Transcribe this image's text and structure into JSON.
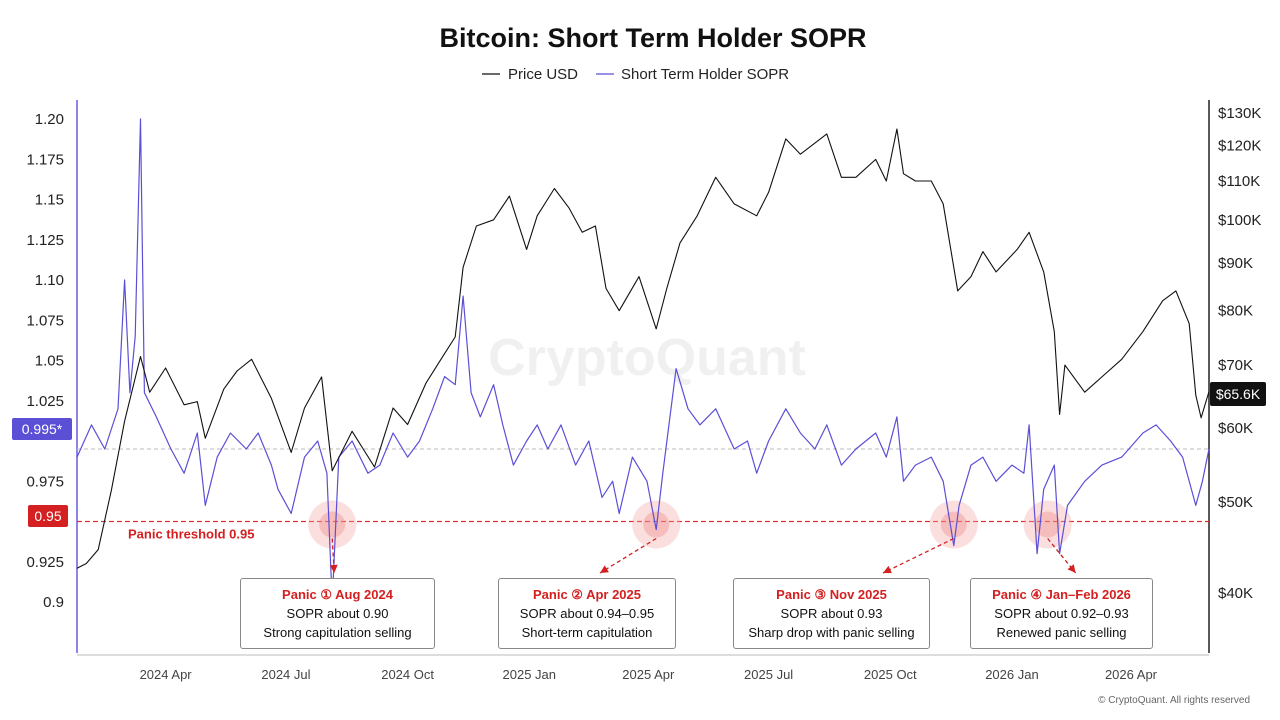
{
  "chart_data": {
    "type": "line",
    "title": "Bitcoin: Short Term Holder SOPR",
    "legend": [
      {
        "name": "Price USD",
        "color": "#111111"
      },
      {
        "name": "Short Term Holder SOPR",
        "color": "#5b4fd6"
      }
    ],
    "legend_position": "top-center",
    "watermark": "CryptoQuant",
    "copyright": "© CryptoQuant. All rights reserved",
    "x_ticks": [
      "2024 Apr",
      "2024 Jul",
      "2024 Oct",
      "2025 Jan",
      "2025 Apr",
      "2025 Jul",
      "2025 Oct",
      "2026 Jan",
      "2026 Apr"
    ],
    "x_range": [
      "2024-01-25",
      "2026-05-30"
    ],
    "y_left": {
      "ticks": [
        "1.20",
        "1.175",
        "1.15",
        "1.125",
        "1.10",
        "1.075",
        "1.05",
        "1.025",
        "0.975",
        "0.95",
        "0.925",
        "0.9"
      ],
      "range": [
        0.895,
        1.2
      ],
      "current_label": "0.995*",
      "current_value": 0.995,
      "threshold_label": "0.95",
      "threshold_value": 0.95
    },
    "y_right": {
      "ticks": [
        "$130K",
        "$120K",
        "$110K",
        "$100K",
        "$90K",
        "$80K",
        "$70K",
        "$60K",
        "$50K",
        "$40K"
      ],
      "scale": "log",
      "current_label": "$65.6K",
      "current_value": 65600
    },
    "threshold": {
      "label": "Panic threshold 0.95",
      "value": 0.95,
      "color": "#e03030"
    },
    "series": [
      {
        "name": "Price USD",
        "axis": "right",
        "color": "#111111",
        "points": [
          [
            "2024-01-25",
            42500
          ],
          [
            "2024-02-01",
            43000
          ],
          [
            "2024-02-10",
            44500
          ],
          [
            "2024-02-20",
            51500
          ],
          [
            "2024-03-01",
            61000
          ],
          [
            "2024-03-13",
            71500
          ],
          [
            "2024-03-20",
            65500
          ],
          [
            "2024-04-01",
            69500
          ],
          [
            "2024-04-15",
            63500
          ],
          [
            "2024-04-25",
            64000
          ],
          [
            "2024-05-01",
            58500
          ],
          [
            "2024-05-15",
            66000
          ],
          [
            "2024-05-25",
            69000
          ],
          [
            "2024-06-05",
            71000
          ],
          [
            "2024-06-20",
            64500
          ],
          [
            "2024-07-05",
            56500
          ],
          [
            "2024-07-15",
            63000
          ],
          [
            "2024-07-28",
            68000
          ],
          [
            "2024-08-05",
            54000
          ],
          [
            "2024-08-20",
            59500
          ],
          [
            "2024-09-06",
            54500
          ],
          [
            "2024-09-20",
            63000
          ],
          [
            "2024-10-01",
            60500
          ],
          [
            "2024-10-15",
            67000
          ],
          [
            "2024-10-29",
            72000
          ],
          [
            "2024-11-06",
            75000
          ],
          [
            "2024-11-12",
            89000
          ],
          [
            "2024-11-22",
            98500
          ],
          [
            "2024-12-05",
            100000
          ],
          [
            "2024-12-17",
            106000
          ],
          [
            "2024-12-30",
            93000
          ],
          [
            "2025-01-07",
            101000
          ],
          [
            "2025-01-20",
            108000
          ],
          [
            "2025-01-31",
            103000
          ],
          [
            "2025-02-10",
            97000
          ],
          [
            "2025-02-20",
            98500
          ],
          [
            "2025-02-28",
            84500
          ],
          [
            "2025-03-10",
            80000
          ],
          [
            "2025-03-25",
            87000
          ],
          [
            "2025-04-07",
            76500
          ],
          [
            "2025-04-15",
            84500
          ],
          [
            "2025-04-25",
            94500
          ],
          [
            "2025-05-08",
            101000
          ],
          [
            "2025-05-22",
            111000
          ],
          [
            "2025-06-05",
            104000
          ],
          [
            "2025-06-22",
            101000
          ],
          [
            "2025-07-01",
            107000
          ],
          [
            "2025-07-14",
            122000
          ],
          [
            "2025-07-25",
            117500
          ],
          [
            "2025-08-14",
            123500
          ],
          [
            "2025-08-25",
            111000
          ],
          [
            "2025-09-05",
            111000
          ],
          [
            "2025-09-20",
            116000
          ],
          [
            "2025-09-28",
            110000
          ],
          [
            "2025-10-06",
            125000
          ],
          [
            "2025-10-11",
            112000
          ],
          [
            "2025-10-20",
            110000
          ],
          [
            "2025-11-01",
            110000
          ],
          [
            "2025-11-10",
            104000
          ],
          [
            "2025-11-21",
            84000
          ],
          [
            "2025-12-01",
            87000
          ],
          [
            "2025-12-10",
            92500
          ],
          [
            "2025-12-20",
            88000
          ],
          [
            "2026-01-05",
            93000
          ],
          [
            "2026-01-14",
            97000
          ],
          [
            "2026-01-25",
            88000
          ],
          [
            "2026-02-02",
            76000
          ],
          [
            "2026-02-06",
            62000
          ],
          [
            "2026-02-10",
            70000
          ],
          [
            "2026-02-25",
            65500
          ],
          [
            "2026-03-10",
            68000
          ],
          [
            "2026-03-25",
            71000
          ],
          [
            "2026-04-10",
            76000
          ],
          [
            "2026-04-25",
            82000
          ],
          [
            "2026-05-05",
            84000
          ],
          [
            "2026-05-15",
            77500
          ],
          [
            "2026-05-20",
            65000
          ],
          [
            "2026-05-24",
            61500
          ],
          [
            "2026-05-30",
            65600
          ]
        ]
      },
      {
        "name": "Short Term Holder SOPR",
        "axis": "left",
        "color": "#5b4fd6",
        "points": [
          [
            "2024-01-25",
            0.99
          ],
          [
            "2024-02-05",
            1.01
          ],
          [
            "2024-02-15",
            0.995
          ],
          [
            "2024-02-25",
            1.02
          ],
          [
            "2024-03-01",
            1.1
          ],
          [
            "2024-03-05",
            1.03
          ],
          [
            "2024-03-09",
            1.065
          ],
          [
            "2024-03-13",
            1.2
          ],
          [
            "2024-03-16",
            1.03
          ],
          [
            "2024-03-25",
            1.015
          ],
          [
            "2024-04-05",
            0.995
          ],
          [
            "2024-04-15",
            0.98
          ],
          [
            "2024-04-25",
            1.005
          ],
          [
            "2024-05-01",
            0.96
          ],
          [
            "2024-05-10",
            0.99
          ],
          [
            "2024-05-20",
            1.005
          ],
          [
            "2024-06-01",
            0.995
          ],
          [
            "2024-06-10",
            1.005
          ],
          [
            "2024-06-20",
            0.985
          ],
          [
            "2024-06-25",
            0.97
          ],
          [
            "2024-07-05",
            0.955
          ],
          [
            "2024-07-15",
            0.99
          ],
          [
            "2024-07-25",
            1.0
          ],
          [
            "2024-08-01",
            0.98
          ],
          [
            "2024-08-05",
            0.9
          ],
          [
            "2024-08-10",
            0.99
          ],
          [
            "2024-08-20",
            1.0
          ],
          [
            "2024-09-01",
            0.98
          ],
          [
            "2024-09-10",
            0.985
          ],
          [
            "2024-09-20",
            1.005
          ],
          [
            "2024-10-01",
            0.99
          ],
          [
            "2024-10-10",
            1.0
          ],
          [
            "2024-10-20",
            1.02
          ],
          [
            "2024-10-29",
            1.04
          ],
          [
            "2024-11-06",
            1.035
          ],
          [
            "2024-11-12",
            1.09
          ],
          [
            "2024-11-18",
            1.03
          ],
          [
            "2024-11-25",
            1.015
          ],
          [
            "2024-12-05",
            1.035
          ],
          [
            "2024-12-12",
            1.01
          ],
          [
            "2024-12-20",
            0.985
          ],
          [
            "2024-12-30",
            1.0
          ],
          [
            "2025-01-07",
            1.01
          ],
          [
            "2025-01-15",
            0.995
          ],
          [
            "2025-01-25",
            1.01
          ],
          [
            "2025-02-05",
            0.985
          ],
          [
            "2025-02-15",
            1.0
          ],
          [
            "2025-02-25",
            0.965
          ],
          [
            "2025-03-05",
            0.975
          ],
          [
            "2025-03-10",
            0.955
          ],
          [
            "2025-03-20",
            0.99
          ],
          [
            "2025-03-31",
            0.975
          ],
          [
            "2025-04-07",
            0.945
          ],
          [
            "2025-04-12",
            0.98
          ],
          [
            "2025-04-22",
            1.045
          ],
          [
            "2025-05-01",
            1.02
          ],
          [
            "2025-05-10",
            1.01
          ],
          [
            "2025-05-22",
            1.02
          ],
          [
            "2025-06-05",
            0.995
          ],
          [
            "2025-06-15",
            1.0
          ],
          [
            "2025-06-22",
            0.98
          ],
          [
            "2025-07-01",
            1.0
          ],
          [
            "2025-07-14",
            1.02
          ],
          [
            "2025-07-25",
            1.005
          ],
          [
            "2025-08-05",
            0.995
          ],
          [
            "2025-08-14",
            1.01
          ],
          [
            "2025-08-25",
            0.985
          ],
          [
            "2025-09-05",
            0.995
          ],
          [
            "2025-09-20",
            1.005
          ],
          [
            "2025-09-28",
            0.99
          ],
          [
            "2025-10-06",
            1.015
          ],
          [
            "2025-10-11",
            0.975
          ],
          [
            "2025-10-20",
            0.985
          ],
          [
            "2025-11-01",
            0.99
          ],
          [
            "2025-11-10",
            0.975
          ],
          [
            "2025-11-18",
            0.935
          ],
          [
            "2025-11-22",
            0.96
          ],
          [
            "2025-12-01",
            0.985
          ],
          [
            "2025-12-10",
            0.99
          ],
          [
            "2025-12-20",
            0.975
          ],
          [
            "2026-01-01",
            0.985
          ],
          [
            "2026-01-10",
            0.98
          ],
          [
            "2026-01-14",
            1.01
          ],
          [
            "2026-01-20",
            0.93
          ],
          [
            "2026-01-25",
            0.97
          ],
          [
            "2026-02-02",
            0.985
          ],
          [
            "2026-02-06",
            0.93
          ],
          [
            "2026-02-12",
            0.96
          ],
          [
            "2026-02-25",
            0.975
          ],
          [
            "2026-03-10",
            0.985
          ],
          [
            "2026-03-25",
            0.99
          ],
          [
            "2026-04-10",
            1.005
          ],
          [
            "2026-04-20",
            1.01
          ],
          [
            "2026-05-01",
            1.0
          ],
          [
            "2026-05-10",
            0.99
          ],
          [
            "2026-05-20",
            0.96
          ],
          [
            "2026-05-25",
            0.975
          ],
          [
            "2026-05-30",
            0.995
          ]
        ]
      }
    ],
    "annotations": [
      {
        "title": "Panic ① Aug 2024",
        "line1": "SOPR about 0.90",
        "line2": "Strong capitulation selling",
        "date": "2024-08-05",
        "value": 0.95
      },
      {
        "title": "Panic ② Apr 2025",
        "line1": "SOPR about 0.94–0.95",
        "line2": "Short-term capitulation",
        "date": "2025-04-07",
        "value": 0.95
      },
      {
        "title": "Panic ③ Nov 2025",
        "line1": "SOPR about 0.93",
        "line2": "Sharp drop with panic selling",
        "date": "2025-11-18",
        "value": 0.95
      },
      {
        "title": "Panic ④ Jan–Feb 2026",
        "line1": "SOPR about 0.92–0.93",
        "line2": "Renewed panic selling",
        "date": "2026-01-28",
        "value": 0.95
      }
    ]
  }
}
